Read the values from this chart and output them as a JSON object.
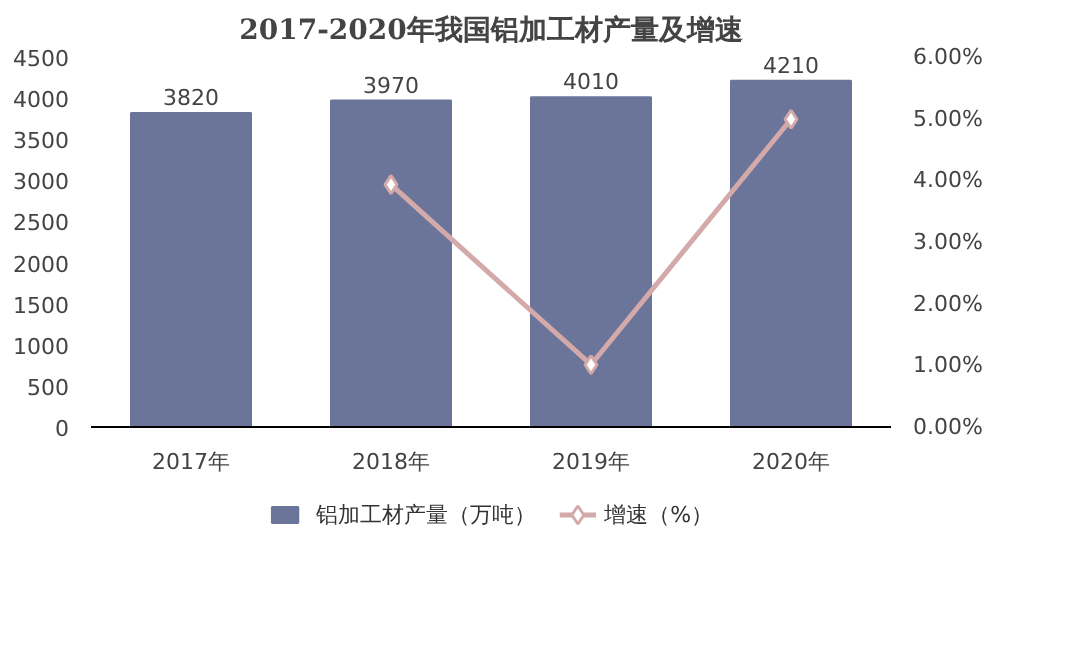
{
  "chart_data": {
    "type": "bar",
    "title": "2017-2020年我国铝加工材产量及增速",
    "categories": [
      "2017年",
      "2018年",
      "2019年",
      "2020年"
    ],
    "series": [
      {
        "name": "铝加工材产量（万吨）",
        "color": "#6b7599",
        "values": [
          3820,
          3970,
          4010,
          4210
        ],
        "value_labels": [
          "3820",
          "3970",
          "4010",
          "4210"
        ]
      },
      {
        "name": "增速（%）",
        "type": "line",
        "axis": "y2",
        "color": "#d4a9a9",
        "marker": "diamond",
        "values": [
          null,
          3.93,
          1.01,
          4.99
        ]
      }
    ],
    "ylim": [
      0,
      4500
    ],
    "yticks": [
      0,
      500,
      1000,
      1500,
      2000,
      2500,
      3000,
      3500,
      4000,
      4500
    ],
    "y2lim": [
      0,
      6
    ],
    "y2ticks": [
      {
        "value": 0,
        "label": "0.00%"
      },
      {
        "value": 1,
        "label": "1.00%"
      },
      {
        "value": 2,
        "label": "2.00%"
      },
      {
        "value": 3,
        "label": "3.00%"
      },
      {
        "value": 4,
        "label": "4.00%"
      },
      {
        "value": 5,
        "label": "5.00%"
      },
      {
        "value": 6,
        "label": "6.00%"
      }
    ],
    "legend": "bottom"
  }
}
